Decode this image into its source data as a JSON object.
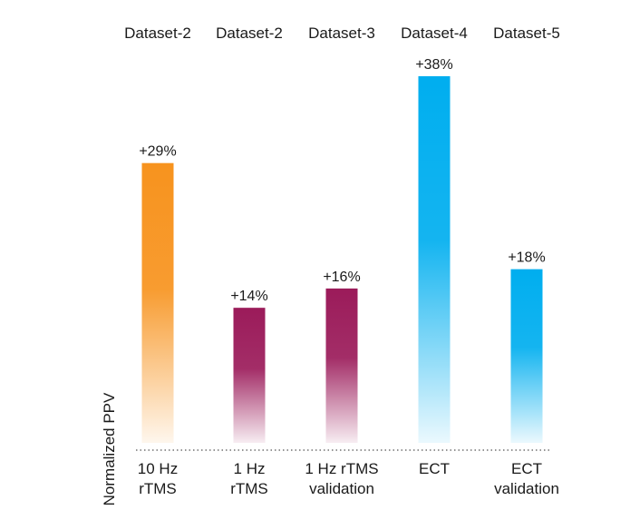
{
  "chart_data": {
    "type": "bar",
    "ylabel": "Normalized PPV",
    "categories": [
      {
        "dataset": "Dataset-2",
        "label_lines": [
          "10 Hz",
          "rTMS"
        ]
      },
      {
        "dataset": "Dataset-2",
        "label_lines": [
          "1 Hz",
          "rTMS"
        ]
      },
      {
        "dataset": "Dataset-3",
        "label_lines": [
          "1 Hz rTMS",
          "validation"
        ]
      },
      {
        "dataset": "Dataset-4",
        "label_lines": [
          "ECT"
        ]
      },
      {
        "dataset": "Dataset-5",
        "label_lines": [
          "ECT",
          "validation"
        ]
      }
    ],
    "values": [
      29,
      14,
      16,
      38,
      18
    ],
    "value_labels": [
      "+29%",
      "+14%",
      "+16%",
      "+38%",
      "+18%"
    ],
    "colors": [
      "#F7931E",
      "#9B1B5A",
      "#9B1B5A",
      "#00AEEF",
      "#00AEEF"
    ],
    "ylim": [
      0,
      38
    ],
    "baseline": "dotted",
    "grid": false
  }
}
